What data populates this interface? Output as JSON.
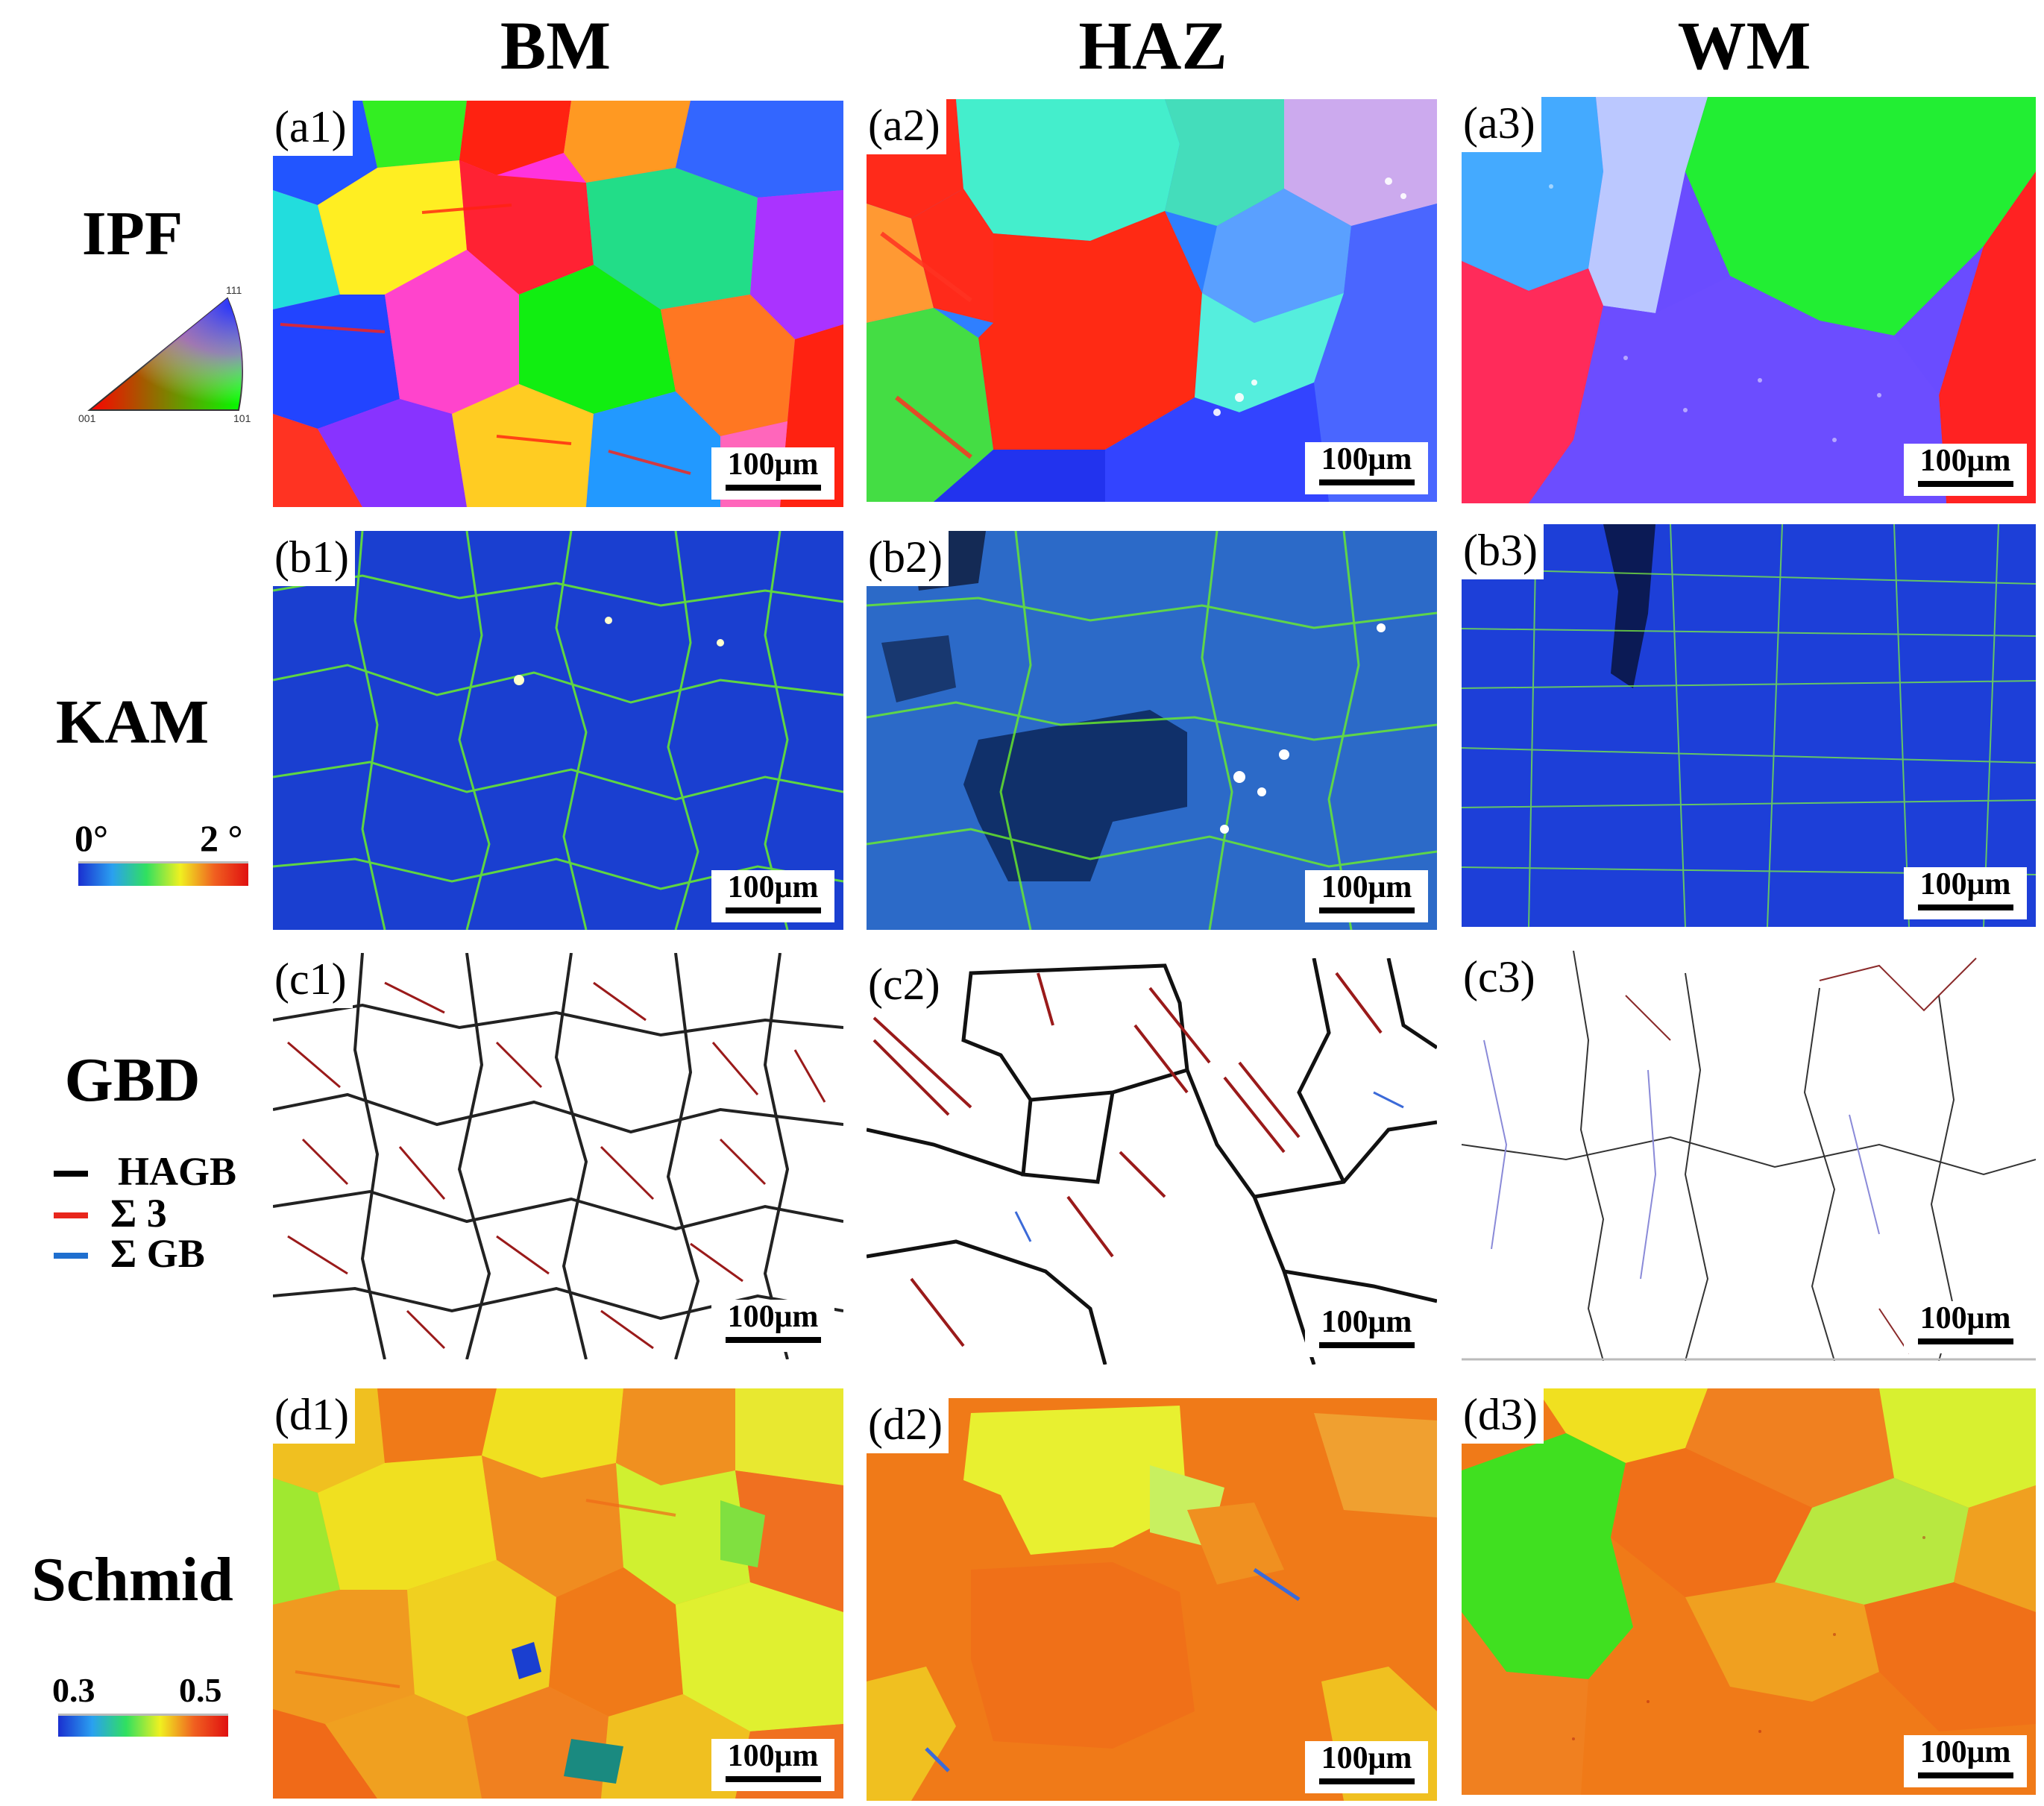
{
  "columns": [
    "BM",
    "HAZ",
    "WM"
  ],
  "rows": {
    "ipf": "IPF",
    "kam": "KAM",
    "gbd": "GBD",
    "schmid": "Schmid"
  },
  "panels": {
    "a1": "(a1)",
    "a2": "(a2)",
    "a3": "(a3)",
    "b1": "(b1)",
    "b2": "(b2)",
    "b3": "(b3)",
    "c1": "(c1)",
    "c2": "(c2)",
    "c3": "(c3)",
    "d1": "(d1)",
    "d2": "(d2)",
    "d3": "(d3)"
  },
  "scale_bar": "100μm",
  "legends": {
    "ipf_triangle": {
      "top": "111",
      "left": "001",
      "right": "101"
    },
    "kam": {
      "min": "0°",
      "max": "2 °"
    },
    "gbd": [
      {
        "label": "HAGB",
        "color": "#000000"
      },
      {
        "label": "Σ 3",
        "color": "#e8261c"
      },
      {
        "label": "Σ GB",
        "color": "#1f6fcf"
      }
    ],
    "schmid": {
      "min": "0.3",
      "max": "0.5"
    }
  },
  "colors": {
    "ipf_red": "#ff2a1a",
    "ipf_green": "#22e022",
    "ipf_blue": "#2233ee",
    "kam_background": "#1a3fd0",
    "kam_boundary": "#6cf02a",
    "twin_boundary": "#9a1a1a",
    "schmid_orange": "#f07a18",
    "schmid_yellow": "#f0e020"
  }
}
